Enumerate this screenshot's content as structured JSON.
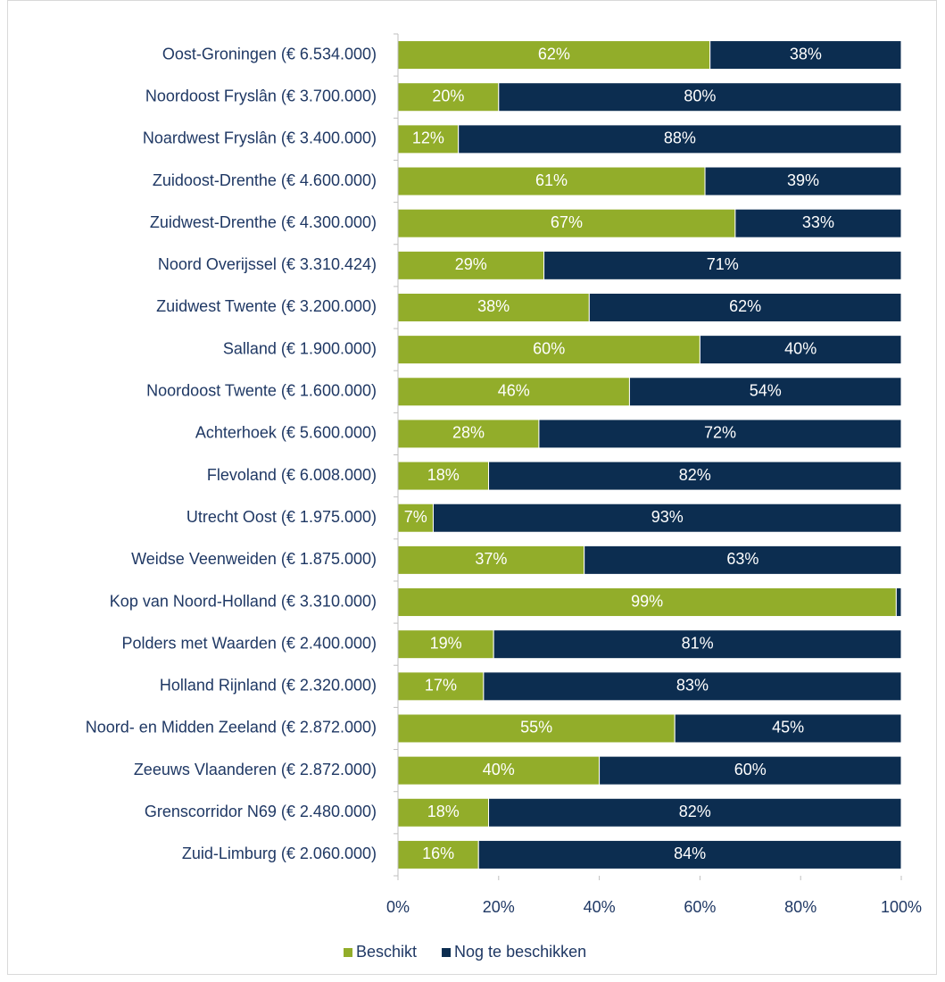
{
  "chart_data": {
    "type": "stacked_bar_horizontal",
    "categories": [
      "Oost-Groningen (€ 6.534.000)",
      "Noordoost Fryslân (€ 3.700.000)",
      "Noardwest Fryslân (€ 3.400.000)",
      "Zuidoost-Drenthe (€ 4.600.000)",
      "Zuidwest-Drenthe (€ 4.300.000)",
      "Noord Overijssel (€ 3.310.424)",
      "Zuidwest Twente (€ 3.200.000)",
      "Salland (€ 1.900.000)",
      "Noordoost Twente (€ 1.600.000)",
      "Achterhoek (€ 5.600.000)",
      "Flevoland (€ 6.008.000)",
      "Utrecht Oost (€ 1.975.000)",
      "Weidse Veenweiden (€ 1.875.000)",
      "Kop van Noord-Holland (€ 3.310.000)",
      "Polders met Waarden (€ 2.400.000)",
      "Holland Rijnland (€ 2.320.000)",
      "Noord- en Midden Zeeland (€ 2.872.000)",
      "Zeeuws Vlaanderen (€ 2.872.000)",
      "Grenscorridor N69 (€ 2.480.000)",
      "Zuid-Limburg (€ 2.060.000)"
    ],
    "series": [
      {
        "name": "Beschikt",
        "color": "#92ad2a",
        "values": [
          62,
          20,
          12,
          61,
          67,
          29,
          38,
          60,
          46,
          28,
          18,
          7,
          37,
          99,
          19,
          17,
          55,
          40,
          18,
          16
        ],
        "value_labels": [
          "62%",
          "20%",
          "12%",
          "61%",
          "67%",
          "29%",
          "38%",
          "60%",
          "46%",
          "28%",
          "18%",
          "7%",
          "37%",
          "99%",
          "19%",
          "17%",
          "55%",
          "40%",
          "18%",
          "16%"
        ]
      },
      {
        "name": "Nog te beschikken",
        "color": "#0c2d50",
        "values": [
          38,
          80,
          88,
          39,
          33,
          71,
          62,
          40,
          54,
          72,
          82,
          93,
          63,
          1,
          81,
          83,
          45,
          60,
          82,
          84
        ],
        "value_labels": [
          "38%",
          "80%",
          "88%",
          "39%",
          "33%",
          "71%",
          "62%",
          "40%",
          "54%",
          "72%",
          "82%",
          "93%",
          "63%",
          null,
          "81%",
          "83%",
          "45%",
          "60%",
          "82%",
          "84%"
        ]
      }
    ],
    "xlim": [
      0,
      100
    ],
    "xticks": [
      {
        "value": 0,
        "label": "0%"
      },
      {
        "value": 20,
        "label": "20%"
      },
      {
        "value": 40,
        "label": "40%"
      },
      {
        "value": 60,
        "label": "60%"
      },
      {
        "value": 80,
        "label": "80%"
      },
      {
        "value": 100,
        "label": "100%"
      }
    ],
    "legend": "bottom"
  }
}
